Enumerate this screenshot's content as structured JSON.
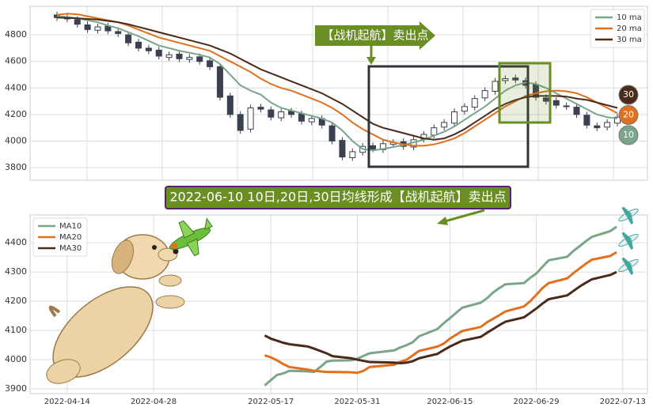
{
  "chart_data": [
    {
      "type": "candlestick",
      "ylim": [
        3705,
        5015
      ],
      "yticks": [
        3800,
        4000,
        4200,
        4400,
        4600,
        4800
      ],
      "grid": true,
      "legend": "upper right",
      "up_color": "#ffffff",
      "down_color": "#3b4150",
      "edge_color": "#3b4150",
      "open": [
        4950,
        4935,
        4915,
        4875,
        4835,
        4865,
        4825,
        4800,
        4745,
        4700,
        4685,
        4630,
        4655,
        4615,
        4635,
        4605,
        4560,
        4340,
        4200,
        4090,
        4255,
        4235,
        4175,
        4225,
        4205,
        4145,
        4170,
        4115,
        4005,
        3875,
        3915,
        3965,
        3935,
        3975,
        3995,
        3955,
        4015,
        4045,
        4105,
        4135,
        4225,
        4255,
        4325,
        4375,
        4455,
        4475,
        4455,
        4425,
        4325,
        4305,
        4265,
        4255,
        4195,
        4115,
        4105,
        4135
      ],
      "high": [
        4975,
        4960,
        4940,
        4900,
        4885,
        4890,
        4850,
        4825,
        4770,
        4725,
        4710,
        4675,
        4680,
        4655,
        4660,
        4630,
        4585,
        4365,
        4225,
        4275,
        4280,
        4260,
        4245,
        4250,
        4230,
        4195,
        4195,
        4140,
        4030,
        3945,
        3985,
        3990,
        4005,
        4015,
        4020,
        4035,
        4075,
        4125,
        4165,
        4245,
        4285,
        4345,
        4405,
        4475,
        4495,
        4500,
        4480,
        4450,
        4350,
        4330,
        4290,
        4280,
        4220,
        4140,
        4165,
        4205
      ],
      "low": [
        4905,
        4895,
        4855,
        4815,
        4810,
        4805,
        4785,
        4715,
        4675,
        4655,
        4615,
        4605,
        4595,
        4590,
        4575,
        4535,
        4305,
        4175,
        4055,
        4065,
        4215,
        4155,
        4150,
        4175,
        4125,
        4120,
        4095,
        3975,
        3855,
        3850,
        3890,
        3915,
        3910,
        3950,
        3935,
        3930,
        3990,
        4020,
        4080,
        4110,
        4200,
        4230,
        4300,
        4350,
        4430,
        4435,
        4395,
        4305,
        4275,
        4245,
        4235,
        4175,
        4095,
        4075,
        4080,
        4110
      ],
      "close": [
        4930,
        4920,
        4880,
        4840,
        4860,
        4830,
        4810,
        4740,
        4700,
        4680,
        4640,
        4650,
        4620,
        4630,
        4600,
        4560,
        4330,
        4200,
        4080,
        4250,
        4240,
        4180,
        4220,
        4200,
        4150,
        4170,
        4120,
        4000,
        3880,
        3920,
        3960,
        3940,
        3980,
        3990,
        3960,
        4010,
        4050,
        4100,
        4140,
        4220,
        4260,
        4320,
        4380,
        4450,
        4470,
        4460,
        4420,
        4330,
        4300,
        4270,
        4260,
        4200,
        4120,
        4100,
        4140,
        4180
      ],
      "series": [
        {
          "name": "10 ma",
          "color": "#7aa58a",
          "values": [
            4940,
            4935,
            4925,
            4910,
            4895,
            4870,
            4850,
            4820,
            4790,
            4755,
            4720,
            4700,
            4680,
            4665,
            4650,
            4630,
            4580,
            4500,
            4420,
            4380,
            4350,
            4290,
            4250,
            4230,
            4210,
            4190,
            4170,
            4140,
            4080,
            4000,
            3940,
            3930,
            3940,
            3955,
            3970,
            3990,
            4010,
            4040,
            4070,
            4110,
            4160,
            4210,
            4260,
            4320,
            4380,
            4420,
            4440,
            4430,
            4400,
            4360,
            4320,
            4280,
            4240,
            4200,
            4180,
            4170
          ]
        },
        {
          "name": "20 ma",
          "color": "#e07020",
          "values": [
            4950,
            4960,
            4955,
            4940,
            4925,
            4910,
            4895,
            4870,
            4840,
            4810,
            4780,
            4760,
            4740,
            4720,
            4700,
            4680,
            4640,
            4600,
            4560,
            4520,
            4470,
            4430,
            4400,
            4380,
            4350,
            4320,
            4290,
            4250,
            4200,
            4140,
            4090,
            4050,
            4010,
            3990,
            3975,
            3965,
            3965,
            3975,
            3995,
            4020,
            4060,
            4110,
            4160,
            4210,
            4260,
            4300,
            4340,
            4360,
            4375,
            4380,
            4375,
            4360,
            4330,
            4290,
            4250,
            4210
          ]
        },
        {
          "name": "30 ma",
          "color": "#4a2a1a",
          "values": [
            4930,
            4928,
            4925,
            4920,
            4915,
            4905,
            4895,
            4880,
            4860,
            4840,
            4820,
            4800,
            4780,
            4760,
            4740,
            4720,
            4690,
            4660,
            4620,
            4580,
            4540,
            4510,
            4480,
            4450,
            4420,
            4390,
            4360,
            4320,
            4280,
            4230,
            4180,
            4130,
            4100,
            4080,
            4060,
            4040,
            4020,
            4010,
            4020,
            4050,
            4090,
            4140,
            4190,
            4240,
            4280,
            4310,
            4330,
            4340,
            4340,
            4340,
            4335,
            4320,
            4310,
            4290,
            4270,
            4250
          ]
        }
      ],
      "end_labels": [
        "10",
        "20",
        "30"
      ],
      "annotations": [
        "【战机起航】卖出点",
        "2022-06-10 10日,20日,30日均线形成【战机起航】卖出点"
      ]
    },
    {
      "type": "line",
      "x": [
        "2022-05-16",
        "2022-05-17",
        "2022-05-18",
        "2022-05-19",
        "2022-05-20",
        "2022-05-23",
        "2022-05-24",
        "2022-05-25",
        "2022-05-26",
        "2022-05-27",
        "2022-05-30",
        "2022-05-31",
        "2022-06-01",
        "2022-06-02",
        "2022-06-06",
        "2022-06-07",
        "2022-06-08",
        "2022-06-09",
        "2022-06-10",
        "2022-06-13",
        "2022-06-14",
        "2022-06-15",
        "2022-06-16",
        "2022-06-17",
        "2022-06-20",
        "2022-06-21",
        "2022-06-22",
        "2022-06-23",
        "2022-06-24",
        "2022-06-27",
        "2022-06-28",
        "2022-06-29",
        "2022-06-30",
        "2022-07-01",
        "2022-07-04",
        "2022-07-05",
        "2022-07-06",
        "2022-07-07",
        "2022-07-08",
        "2022-07-11",
        "2022-07-12"
      ],
      "xlim": [
        "2022-04-08",
        "2022-07-17"
      ],
      "xticks": [
        "2022-04-14",
        "2022-04-28",
        "2022-05-17",
        "2022-05-31",
        "2022-06-15",
        "2022-06-29",
        "2022-07-13"
      ],
      "ylim": [
        3884,
        4495
      ],
      "yticks": [
        3900,
        4000,
        4100,
        4200,
        4300,
        4400
      ],
      "grid": true,
      "legend": "upper left",
      "series": [
        {
          "name": "MA10",
          "color": "#7aa58a",
          "values": [
            3912,
            3930,
            3948,
            3953,
            3962,
            3960,
            3958,
            3975,
            3993,
            3997,
            3998,
            4003,
            4013,
            4022,
            4032,
            4042,
            4050,
            4060,
            4080,
            4105,
            4125,
            4142,
            4160,
            4178,
            4195,
            4210,
            4230,
            4245,
            4258,
            4262,
            4280,
            4295,
            4318,
            4340,
            4352,
            4372,
            4388,
            4405,
            4420,
            4440,
            4455
          ]
        },
        {
          "name": "MA20",
          "color": "#e07020",
          "values": [
            4015,
            4008,
            3998,
            3985,
            3975,
            3966,
            3962,
            3960,
            3958,
            3958,
            3957,
            3955,
            3962,
            3975,
            3983,
            3993,
            4000,
            4015,
            4030,
            4045,
            4055,
            4072,
            4085,
            4098,
            4112,
            4128,
            4140,
            4152,
            4165,
            4182,
            4200,
            4222,
            4245,
            4262,
            4278,
            4296,
            4312,
            4328,
            4342,
            4355,
            4368
          ]
        },
        {
          "name": "MA30",
          "color": "#4a2a1a",
          "values": [
            4083,
            4072,
            4065,
            4058,
            4053,
            4045,
            4038,
            4030,
            4022,
            4012,
            4005,
            4000,
            3996,
            3992,
            3990,
            3988,
            3990,
            3995,
            4005,
            4020,
            4033,
            4045,
            4055,
            4065,
            4078,
            4092,
            4105,
            4118,
            4130,
            4145,
            4160,
            4175,
            4192,
            4207,
            4220,
            4235,
            4250,
            4263,
            4275,
            4290,
            4300
          ]
        }
      ]
    }
  ]
}
